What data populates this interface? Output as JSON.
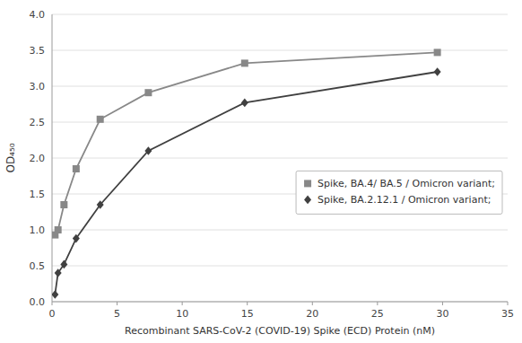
{
  "chart_data": {
    "type": "line",
    "xlabel": "Recombinant SARS-CoV-2 (COVID-19) Spike (ECD) Protein (nM)",
    "ylabel": "OD₄₅₀",
    "xlim": [
      0,
      35
    ],
    "ylim": [
      0,
      4
    ],
    "xticks": [
      0,
      5,
      10,
      15,
      20,
      25,
      30,
      35
    ],
    "yticks": [
      {
        "value": 0,
        "label": "0.0"
      },
      0.5,
      {
        "value": 1.0,
        "label": "1.0"
      },
      1.5,
      {
        "value": 2.0,
        "label": "2.0"
      },
      2.5,
      {
        "value": 3.0,
        "label": "3.0"
      },
      3.5,
      {
        "value": 4.0,
        "label": "4.0"
      }
    ],
    "grid": "y",
    "legend": "right",
    "series": [
      {
        "name": "Spike, BA.4/ BA.5 / Omicron variant;",
        "color": "#888888",
        "marker": "square",
        "x": [
          0.23,
          0.46,
          0.92,
          1.85,
          3.7,
          7.4,
          14.8,
          29.6
        ],
        "values": [
          0.93,
          1.0,
          1.35,
          1.85,
          2.54,
          2.91,
          3.32,
          3.47
        ]
      },
      {
        "name": "Spike, BA.2.12.1 / Omicron variant;",
        "color": "#404040",
        "marker": "diamond",
        "x": [
          0.23,
          0.46,
          0.92,
          1.85,
          3.7,
          7.4,
          14.8,
          29.6
        ],
        "values": [
          0.1,
          0.4,
          0.52,
          0.88,
          1.35,
          2.1,
          2.77,
          3.2
        ]
      }
    ]
  }
}
